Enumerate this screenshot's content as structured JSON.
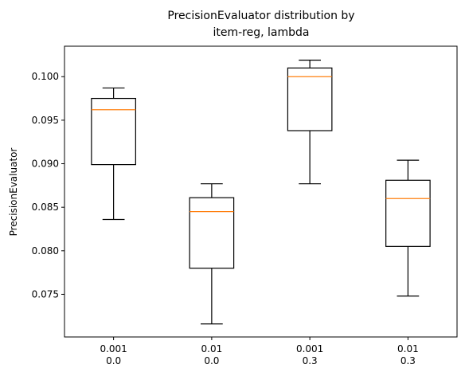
{
  "chart_data": {
    "type": "box",
    "title_lines": [
      "PrecisionEvaluator distribution by",
      "item-reg, lambda"
    ],
    "xlabel": "",
    "ylabel": "PrecisionEvaluator",
    "ylim": [
      0.0701,
      0.1035
    ],
    "yticks": [
      0.075,
      0.08,
      0.085,
      0.09,
      0.095,
      0.1
    ],
    "ytick_labels": [
      "0.075",
      "0.080",
      "0.085",
      "0.090",
      "0.095",
      "0.100"
    ],
    "categories": [
      {
        "line1": "0.001",
        "line2": "0.0"
      },
      {
        "line1": "0.01",
        "line2": "0.0"
      },
      {
        "line1": "0.001",
        "line2": "0.3"
      },
      {
        "line1": "0.01",
        "line2": "0.3"
      }
    ],
    "boxes": [
      {
        "whisker_low": 0.0836,
        "q1": 0.0899,
        "median": 0.0962,
        "q3": 0.0975,
        "whisker_high": 0.0987
      },
      {
        "whisker_low": 0.0716,
        "q1": 0.078,
        "median": 0.0845,
        "q3": 0.0861,
        "whisker_high": 0.0877
      },
      {
        "whisker_low": 0.0877,
        "q1": 0.0938,
        "median": 0.1,
        "q3": 0.101,
        "whisker_high": 0.1019
      },
      {
        "whisker_low": 0.0748,
        "q1": 0.0805,
        "median": 0.086,
        "q3": 0.0881,
        "whisker_high": 0.0904
      }
    ],
    "grid": false,
    "colors": {
      "box": "#000000",
      "median": "#ff7f0e",
      "axes": "#000000"
    }
  }
}
